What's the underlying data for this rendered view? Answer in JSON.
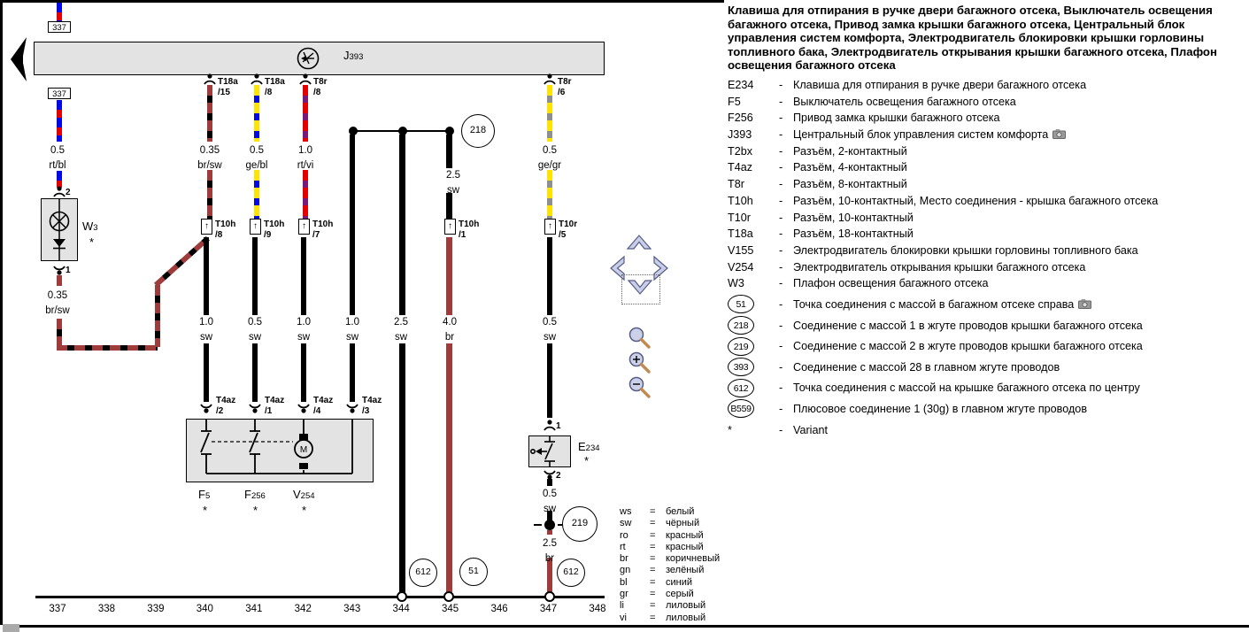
{
  "panel": {
    "title": "Клавиша для отпирания в ручке двери багажного отсека, Выключатель освещения багажного отсека, Привод замка крышки багажного отсека, Центральный блок управления систем комфорта, Электродвигатель блокировки крышки горловины топливного бака, Электродвигатель открывания крышки багажного отсека, Плафон освещения багажного отсека",
    "dash": "-",
    "rows": [
      {
        "code": "E234",
        "desc": "Клавиша для отпирания в ручке двери багажного отсека"
      },
      {
        "code": "F5",
        "desc": "Выключатель освещения багажного отсека"
      },
      {
        "code": "F256",
        "desc": "Привод замка крышки багажного отсека"
      },
      {
        "code": "J393",
        "desc": "Центральный блок управления систем комфорта",
        "camera": true
      },
      {
        "code": "T2bx",
        "desc": "Разъём, 2-контактный"
      },
      {
        "code": "T4az",
        "desc": "Разъём, 4-контактный"
      },
      {
        "code": "T8r",
        "desc": "Разъём, 8-контактный"
      },
      {
        "code": "T10h",
        "desc": "Разъём, 10-контактный, Место соединения - крышка багажного отсека"
      },
      {
        "code": "T10r",
        "desc": "Разъём, 10-контактный"
      },
      {
        "code": "T18a",
        "desc": "Разъём, 18-контактный"
      },
      {
        "code": "V155",
        "desc": "Электродвигатель блокировки крышки горловины топливного бака"
      },
      {
        "code": "V254",
        "desc": "Электродвигатель открывания крышки багажного отсека"
      },
      {
        "code": "W3",
        "desc": "Плафон освещения багажного отсека"
      }
    ],
    "ground_rows": [
      {
        "code": "51",
        "desc": "Точка соединения с массой в багажном отсеке справа",
        "camera": true
      },
      {
        "code": "218",
        "desc": "Соединение с массой 1 в жгуте проводов крышки багажного отсека"
      },
      {
        "code": "219",
        "desc": "Соединение с массой 2 в жгуте проводов крышки багажного отсека"
      },
      {
        "code": "393",
        "desc": "Соединение с массой 28 в главном жгуте проводов"
      },
      {
        "code": "612",
        "desc": "Точка соединения с массой на крышке багажного отсека по центру"
      },
      {
        "code": "B559",
        "desc": "Плюсовое соединение 1 (30g) в главном жгуте проводов"
      }
    ],
    "variant_row": {
      "code": "*",
      "desc": "Variant"
    }
  },
  "color_legend": [
    {
      "code": "ws",
      "eq": "=",
      "name": "белый"
    },
    {
      "code": "sw",
      "eq": "=",
      "name": "чёрный"
    },
    {
      "code": "ro",
      "eq": "=",
      "name": "красный"
    },
    {
      "code": "rt",
      "eq": "=",
      "name": "красный"
    },
    {
      "code": "br",
      "eq": "=",
      "name": "коричневый"
    },
    {
      "code": "gn",
      "eq": "=",
      "name": "зелёный"
    },
    {
      "code": "bl",
      "eq": "=",
      "name": "синий"
    },
    {
      "code": "gr",
      "eq": "=",
      "name": "серый"
    },
    {
      "code": "li",
      "eq": "=",
      "name": "лиловый"
    },
    {
      "code": "vi",
      "eq": "=",
      "name": "лиловый"
    }
  ],
  "tracks": [
    {
      "n": "337"
    },
    {
      "n": "338"
    },
    {
      "n": "339"
    },
    {
      "n": "340"
    },
    {
      "n": "341"
    },
    {
      "n": "342"
    },
    {
      "n": "343"
    },
    {
      "n": "344"
    },
    {
      "n": "345"
    },
    {
      "n": "346"
    },
    {
      "n": "347"
    },
    {
      "n": "348"
    }
  ],
  "diagram": {
    "arrow_up": "↑",
    "motor_letter": "M",
    "refs": {
      "top_337": "337",
      "mid_337": "337",
      "c218": "218",
      "c219": "219",
      "c51": "51",
      "c612a": "612",
      "c612b": "612"
    },
    "j393": {
      "main": "J",
      "sub": "393"
    },
    "w3": {
      "main": "W",
      "sub": "3",
      "star": "*"
    },
    "e234": {
      "main": "E",
      "sub": "234",
      "star": "*"
    },
    "f5": {
      "main": "F",
      "sub": "5",
      "star": "*"
    },
    "f256": {
      "main": "F",
      "sub": "256",
      "star": "*"
    },
    "v254": {
      "main": "V",
      "sub": "254",
      "star": "*"
    },
    "pins": {
      "w3_top": "2",
      "w3_bottom": "1",
      "e234_top": "1",
      "e234_bottom": "2"
    },
    "connectors": [
      {
        "name": "T18a",
        "pin": "/15"
      },
      {
        "name": "T18a",
        "pin": "/8"
      },
      {
        "name": "T8r",
        "pin": "/8"
      },
      {
        "name": "T8r",
        "pin": "/6"
      },
      {
        "name": "T10h",
        "pin": "/8"
      },
      {
        "name": "T10h",
        "pin": "/9"
      },
      {
        "name": "T10h",
        "pin": "/7"
      },
      {
        "name": "T10h",
        "pin": "/1"
      },
      {
        "name": "T10r",
        "pin": "/5"
      },
      {
        "name": "T4az",
        "pin": "/2"
      },
      {
        "name": "T4az",
        "pin": "/1"
      },
      {
        "name": "T4az",
        "pin": "/4"
      },
      {
        "name": "T4az",
        "pin": "/3"
      }
    ],
    "wire_labels": [
      {
        "size": "0.5",
        "color": "rt/bl"
      },
      {
        "size": "0.35",
        "color": "br/sw"
      },
      {
        "size": "0.5",
        "color": "ge/bl"
      },
      {
        "size": "1.0",
        "color": "rt/vi"
      },
      {
        "size": "0.5",
        "color": "ge/gr"
      },
      {
        "size": "2.5",
        "color": "sw"
      },
      {
        "size": "0.35",
        "color": "br/sw"
      },
      {
        "size": "1.0",
        "color": "sw"
      },
      {
        "size": "0.5",
        "color": "sw"
      },
      {
        "size": "1.0",
        "color": "sw"
      },
      {
        "size": "1.0",
        "color": "sw"
      },
      {
        "size": "2.5",
        "color": "sw"
      },
      {
        "size": "4.0",
        "color": "br"
      },
      {
        "size": "0.5",
        "color": "sw"
      },
      {
        "size": "0.5",
        "color": "sw"
      },
      {
        "size": "2.5",
        "color": "br"
      }
    ],
    "wire_palette": {
      "rt": "#e30000",
      "bl": "#0009e6",
      "ge": "#ffe400",
      "gr": "#8f8f8f",
      "vi": "#7a1a78",
      "br": "#9e3b3b",
      "sw": "#000000"
    }
  },
  "nav": {
    "icons": [
      "chevron-up",
      "chevron-left",
      "chevron-right",
      "chevron-down",
      "magnifier",
      "zoom-in",
      "zoom-out"
    ]
  }
}
